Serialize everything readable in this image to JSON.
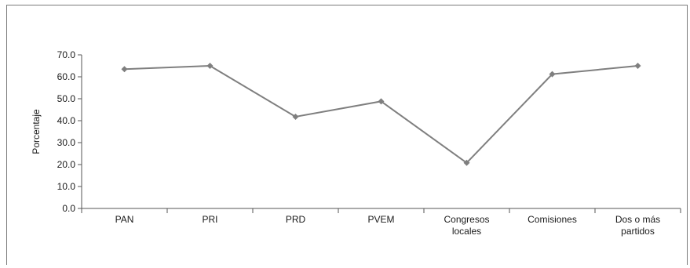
{
  "chart_data": {
    "type": "line",
    "categories": [
      "PAN",
      "PRI",
      "PRD",
      "PVEM",
      "Congresos locales",
      "Comisiones",
      "Dos o más partidos"
    ],
    "category_lines": [
      [
        "PAN"
      ],
      [
        "PRI"
      ],
      [
        "PRD"
      ],
      [
        "PVEM"
      ],
      [
        "Congresos",
        "locales"
      ],
      [
        "Comisiones"
      ],
      [
        "Dos o más",
        "partidos"
      ]
    ],
    "values": [
      63.5,
      65.0,
      41.8,
      48.8,
      20.8,
      61.2,
      65.0
    ],
    "ylabel": "Porcentaje",
    "xlabel": "",
    "title": "",
    "ylim": [
      0,
      70
    ],
    "yticks": [
      "0.0",
      "10.0",
      "20.0",
      "30.0",
      "40.0",
      "50.0",
      "60.0",
      "70.0"
    ],
    "grid": false,
    "legend": "none",
    "colors": {
      "line": "#7f7f7f",
      "marker": "#7f7f7f",
      "axis": "#555555"
    }
  }
}
